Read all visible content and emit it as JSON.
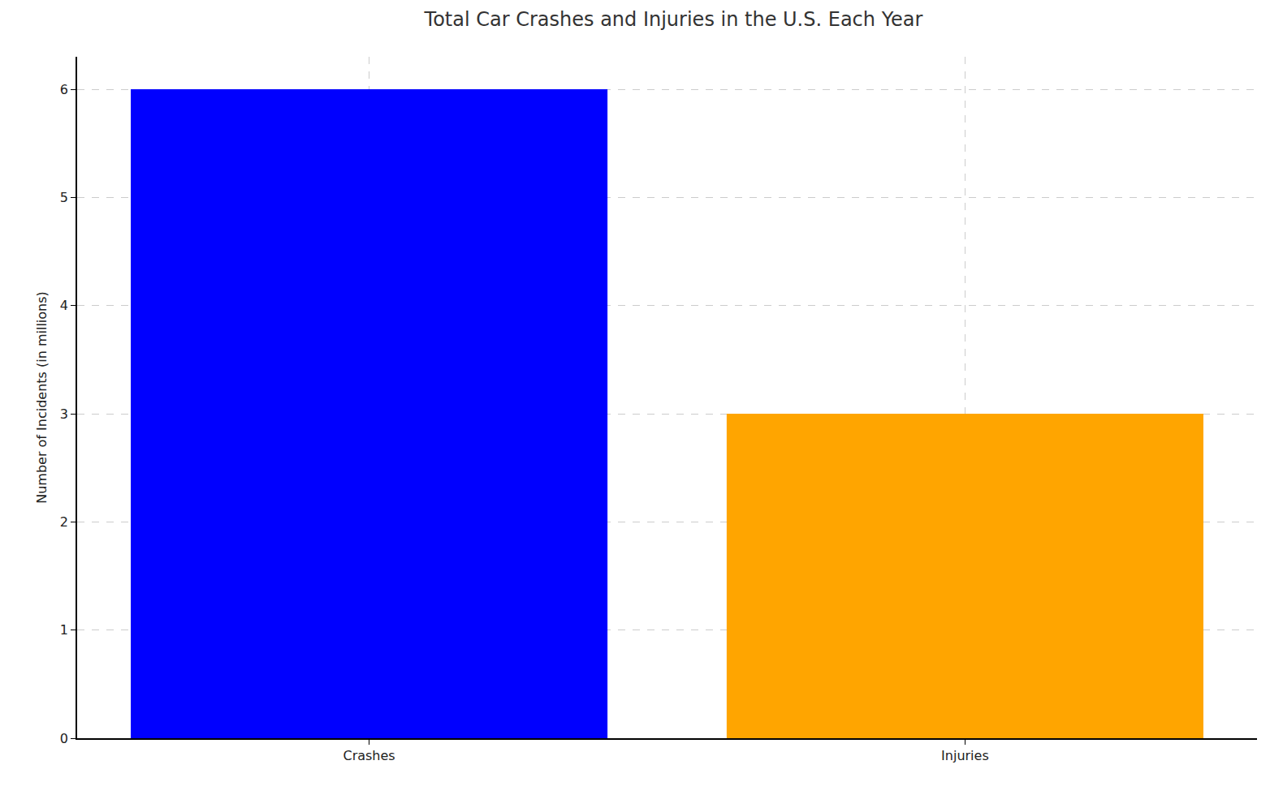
{
  "chart_data": {
    "type": "bar",
    "title": "Total Car Crashes and Injuries in the U.S. Each Year",
    "y_label": "Number of Incidents (in millions)",
    "categories": [
      "Crashes",
      "Injuries"
    ],
    "values": [
      6,
      3
    ],
    "colors": [
      "#0000ff",
      "#ffa500"
    ],
    "ylim": [
      0,
      6.3
    ],
    "yticks": [
      0,
      1,
      2,
      3,
      4,
      5,
      6
    ],
    "grid": true
  }
}
